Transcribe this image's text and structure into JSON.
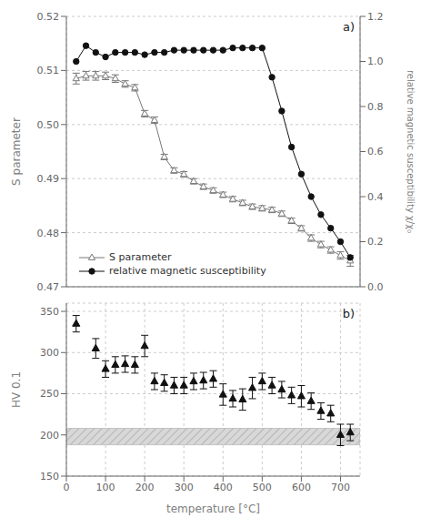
{
  "chart_data": [
    {
      "type": "line",
      "x": [
        25,
        50,
        75,
        100,
        125,
        150,
        175,
        200,
        225,
        250,
        275,
        300,
        325,
        350,
        375,
        400,
        425,
        450,
        475,
        500,
        525,
        550,
        575,
        600,
        625,
        650,
        675,
        700,
        725
      ],
      "xlim": [
        0,
        750
      ],
      "xticks": [
        0,
        100,
        200,
        300,
        400,
        500,
        600,
        700
      ],
      "ylim": [
        0.47,
        0.52
      ],
      "yticks": [
        0.47,
        0.48,
        0.49,
        {
          "value": 0.5,
          "label": "0.50"
        },
        0.51,
        0.52
      ],
      "y2lim": [
        0,
        1.2
      ],
      "y2ticks": [
        {
          "value": 0,
          "label": "0.0"
        },
        0.2,
        0.4,
        0.6,
        0.8,
        {
          "value": 1,
          "label": "1.0"
        },
        1.2
      ],
      "ylabel": "S parameter",
      "y2label": "relative magnetic susceptibility χ/χ₀",
      "annotations": [
        "a)"
      ],
      "legend": "lower left",
      "grid": true,
      "tick_labels": "y",
      "series": [
        {
          "name": "S parameter",
          "color": "#777777",
          "marker": "triangle-open",
          "line_style": "solid",
          "values": [
            0.5085,
            0.509,
            0.509,
            0.509,
            0.5085,
            0.5075,
            0.5068,
            0.502,
            0.5008,
            0.494,
            0.4915,
            0.4908,
            0.4895,
            0.4885,
            0.4878,
            0.487,
            0.4862,
            0.4855,
            0.4848,
            0.4845,
            0.4842,
            0.4835,
            0.4822,
            0.4808,
            0.479,
            0.4778,
            0.4768,
            0.4758,
            0.4748
          ],
          "errors": [
            0.001,
            0.0008,
            0.0008,
            0.0007,
            0.0007,
            0.0006,
            0.0006,
            0.0006,
            0.0006,
            0.0005,
            0.0005,
            0.0005,
            0.0005,
            0.0005,
            0.0005,
            0.0005,
            0.0005,
            0.0005,
            0.0005,
            0.0005,
            0.0005,
            0.0005,
            0.0005,
            0.0005,
            0.0006,
            0.0006,
            0.0006,
            0.0007,
            0.001
          ]
        },
        {
          "name": "relative magnetic susceptibility",
          "color": "#111111",
          "marker": "circle",
          "line_style": "solid",
          "axis": "y2",
          "values": [
            1.0,
            1.07,
            1.04,
            1.02,
            1.04,
            1.04,
            1.04,
            1.03,
            1.04,
            1.04,
            1.05,
            1.05,
            1.05,
            1.05,
            1.05,
            1.05,
            1.06,
            1.06,
            1.06,
            1.06,
            0.93,
            0.78,
            0.62,
            0.5,
            0.4,
            0.32,
            0.26,
            0.2,
            0.13
          ]
        }
      ]
    },
    {
      "type": "scatter",
      "x": [
        25,
        75,
        100,
        125,
        150,
        175,
        200,
        225,
        250,
        275,
        300,
        325,
        350,
        375,
        400,
        425,
        450,
        475,
        500,
        525,
        550,
        575,
        600,
        625,
        650,
        675,
        700,
        725
      ],
      "xlim": [
        0,
        750
      ],
      "xticks": [
        0,
        100,
        200,
        300,
        400,
        500,
        600,
        700
      ],
      "ylim": [
        150,
        360
      ],
      "yticks": [
        150,
        200,
        250,
        300,
        350
      ],
      "xlabel": "temperature [°C]",
      "ylabel": "HV 0.1",
      "annotations": [
        "b)"
      ],
      "grid": true,
      "band": {
        "x": [
          0,
          750
        ],
        "y": [
          188,
          208
        ],
        "color": "#d8d8d8",
        "hatch_color": "#aaaaaa"
      },
      "series": [
        {
          "color": "#111111",
          "marker": "triangle",
          "values": [
            335,
            305,
            280,
            285,
            286,
            285,
            308,
            265,
            263,
            260,
            260,
            265,
            266,
            268,
            249,
            244,
            243,
            257,
            265,
            260,
            255,
            248,
            247,
            241,
            229,
            226,
            200,
            203
          ],
          "errors": [
            10,
            12,
            10,
            10,
            10,
            10,
            13,
            10,
            10,
            10,
            10,
            10,
            10,
            10,
            13,
            10,
            13,
            13,
            10,
            10,
            10,
            10,
            13,
            10,
            10,
            10,
            13,
            10
          ]
        }
      ]
    }
  ]
}
